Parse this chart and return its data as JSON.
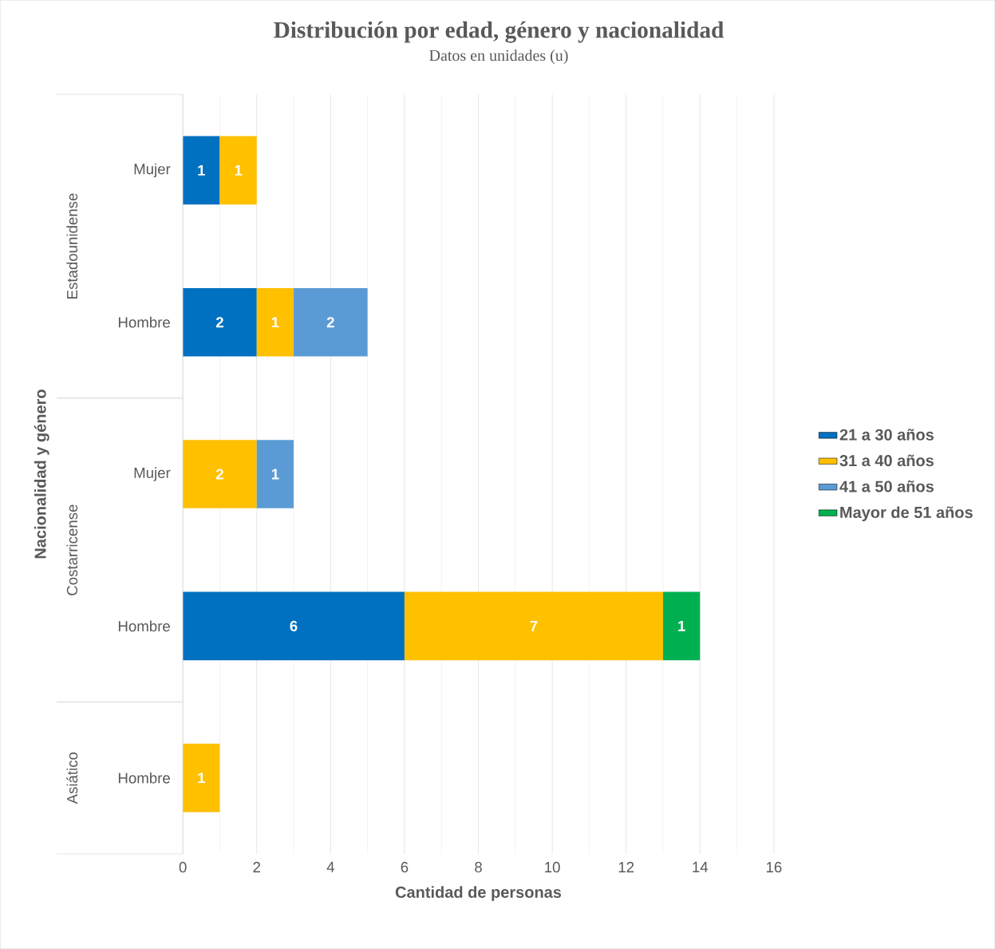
{
  "chart_data": {
    "type": "bar",
    "orientation": "horizontal",
    "stacked": true,
    "title": "Distribución por edad, género y nacionalidad",
    "subtitle": "Datos en unidades (u)",
    "xlabel": "Cantidad de personas",
    "ylabel": "Nacionalidad y género",
    "categories": [
      "Mujer",
      "Hombre",
      "Mujer",
      "Hombre",
      "Hombre"
    ],
    "annotations": [
      "Estadounidense",
      "Costarricense",
      "Asiático"
    ],
    "series": [
      {
        "name": "21 a 30 años",
        "color": "#0070c0",
        "values": [
          1,
          2,
          null,
          6,
          null
        ]
      },
      {
        "name": "31 a 40 años",
        "color": "#ffc000",
        "values": [
          1,
          1,
          2,
          7,
          1
        ]
      },
      {
        "name": "41 a 50 años",
        "color": "#5b9bd5",
        "values": [
          null,
          2,
          1,
          null,
          null
        ]
      },
      {
        "name": "Mayor de 51 años",
        "color": "#00b050",
        "values": [
          null,
          null,
          null,
          1,
          null
        ]
      }
    ],
    "xlim": [
      0,
      16
    ],
    "xticks": [
      0,
      2,
      4,
      6,
      8,
      10,
      12,
      14,
      16
    ],
    "grid": "x",
    "legend": "right",
    "data_labels": true
  }
}
